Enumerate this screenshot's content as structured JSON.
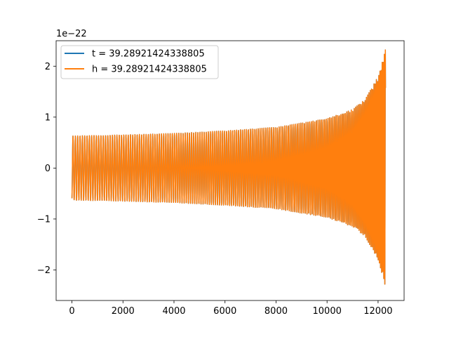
{
  "chart_data": {
    "type": "line",
    "title": "",
    "xlabel": "",
    "ylabel": "",
    "y_offset_label": "1e−22",
    "xlim": [
      -620,
      13020
    ],
    "ylim": [
      -2.6,
      2.5
    ],
    "x_ticks": [
      0,
      2000,
      4000,
      6000,
      8000,
      10000,
      12000
    ],
    "x_tick_labels": [
      "0",
      "2000",
      "4000",
      "6000",
      "8000",
      "10000",
      "12000"
    ],
    "y_ticks": [
      -2,
      -1,
      0,
      1,
      2
    ],
    "y_tick_labels": [
      "−2",
      "−1",
      "0",
      "1",
      "2"
    ],
    "grid": false,
    "legend_position": "upper-left",
    "series": [
      {
        "name": "t = 39.28921424338805",
        "color": "#1f77b4",
        "x_start": 0,
        "x_end": 12290,
        "envelope": [
          [
            0,
            0.63
          ],
          [
            2000,
            0.65
          ],
          [
            4000,
            0.68
          ],
          [
            6000,
            0.73
          ],
          [
            8000,
            0.8
          ],
          [
            10000,
            0.97
          ],
          [
            11000,
            1.15
          ],
          [
            11500,
            1.35
          ],
          [
            12000,
            1.8
          ],
          [
            12290,
            2.33
          ]
        ],
        "cycles_per_sample": [
          [
            0,
            0.0108
          ],
          [
            4000,
            0.0118
          ],
          [
            8000,
            0.0135
          ],
          [
            10000,
            0.0155
          ],
          [
            11000,
            0.0175
          ],
          [
            12000,
            0.0215
          ],
          [
            12290,
            0.025
          ]
        ]
      },
      {
        "name": "h = 39.28921424338805",
        "color": "#ff7f0e",
        "x_start": 0,
        "x_end": 12290,
        "envelope": [
          [
            0,
            0.63
          ],
          [
            2000,
            0.65
          ],
          [
            4000,
            0.68
          ],
          [
            6000,
            0.73
          ],
          [
            8000,
            0.8
          ],
          [
            10000,
            0.97
          ],
          [
            11000,
            1.15
          ],
          [
            11500,
            1.35
          ],
          [
            12000,
            1.8
          ],
          [
            12290,
            2.33
          ]
        ],
        "cycles_per_sample": [
          [
            0,
            0.0108
          ],
          [
            4000,
            0.0118
          ],
          [
            8000,
            0.0135
          ],
          [
            10000,
            0.0155
          ],
          [
            11000,
            0.0175
          ],
          [
            12000,
            0.0215
          ],
          [
            12290,
            0.025
          ]
        ]
      }
    ]
  }
}
